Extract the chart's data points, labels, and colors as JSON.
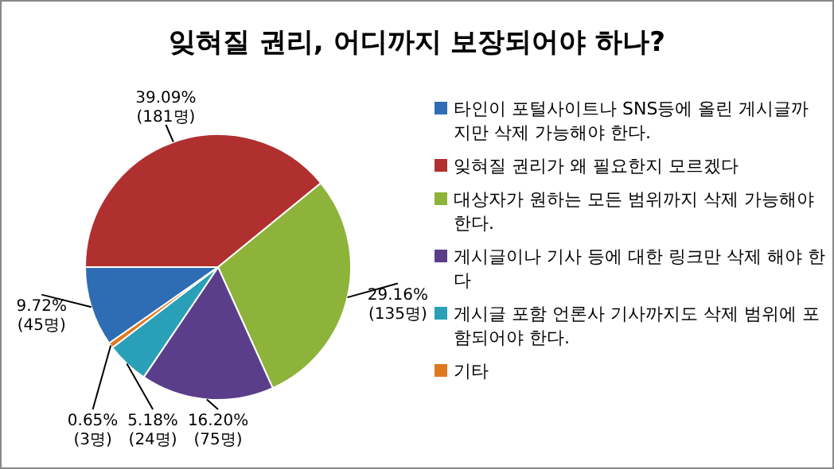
{
  "chart_data": {
    "type": "pie",
    "title": "잊혀질 권리, 어디까지 보장되어야 하나?",
    "categories": [
      "타인이 포털사이트나 SNS등에 올린 게시글까지만 삭제 가능해야 한다.",
      "잊혀질 권리가 왜 필요한지 모르겠다",
      "대상자가 원하는 모든 범위까지 삭제 가능해야 한다.",
      "게시글이나 기사 등에 대한 링크만 삭제 해야 한다",
      "게시글 포함 언론사 기사까지도 삭제 범위에 포함되어야 한다.",
      "기타"
    ],
    "values": [
      9.72,
      39.09,
      29.16,
      16.2,
      5.18,
      0.65
    ],
    "colors": [
      "#2e6db4",
      "#b03030",
      "#8db33a",
      "#5b3e8a",
      "#2aa0b8",
      "#e07820"
    ],
    "value_labels": [
      "9.72%\n(45명)",
      "39.09%\n(181명)",
      "29.16%\n(135명)",
      "16.20%\n(75명)",
      "5.18%\n(24명)",
      "0.65%\n(3명)"
    ],
    "legend": "right"
  }
}
